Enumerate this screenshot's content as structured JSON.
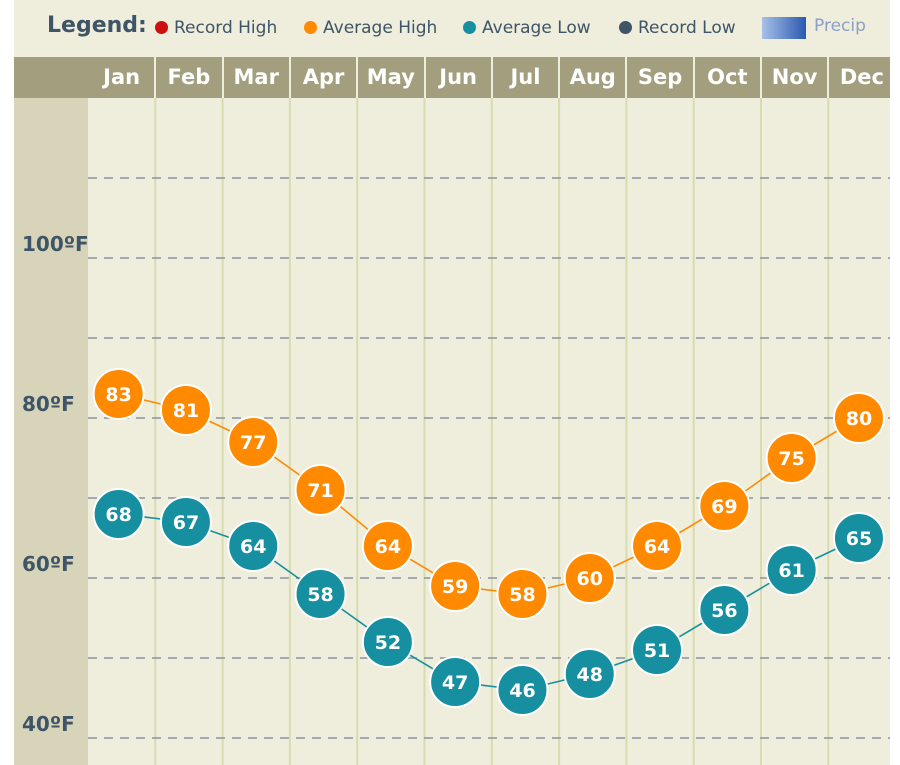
{
  "legend": {
    "title": "Legend:",
    "items": [
      {
        "label": "Record High",
        "color": "#cc1010"
      },
      {
        "label": "Average High",
        "color": "#ff8a00"
      },
      {
        "label": "Average Low",
        "color": "#1690a0"
      },
      {
        "label": "Record Low",
        "color": "#3d5566"
      }
    ],
    "precip_label": "Precip",
    "precip_color": "#2a59b0"
  },
  "chart_data": {
    "type": "line",
    "categories": [
      "Jan",
      "Feb",
      "Mar",
      "Apr",
      "May",
      "Jun",
      "Jul",
      "Aug",
      "Sep",
      "Oct",
      "Nov",
      "Dec"
    ],
    "series": [
      {
        "name": "Average High",
        "color": "#ff8a00",
        "values": [
          83,
          81,
          77,
          71,
          64,
          59,
          58,
          60,
          64,
          69,
          75,
          80
        ]
      },
      {
        "name": "Average Low",
        "color": "#1690a0",
        "values": [
          68,
          67,
          64,
          58,
          52,
          47,
          46,
          48,
          51,
          56,
          61,
          65
        ]
      }
    ],
    "ytick_labels": [
      "100ºF",
      "80ºF",
      "60ºF",
      "40ºF"
    ],
    "ytick_values": [
      100,
      80,
      60,
      40
    ],
    "ylim": [
      40,
      120
    ],
    "grid": true,
    "legend_position": "top"
  }
}
